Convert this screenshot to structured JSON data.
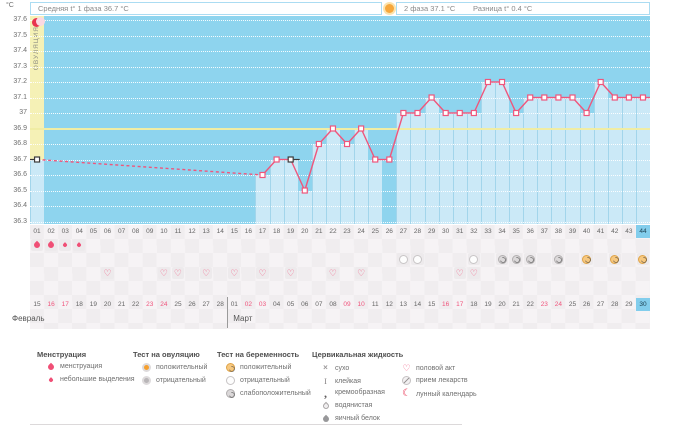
{
  "header": {
    "unit": "°C",
    "avg_phase1_label": "Средняя t° 1 фаза 36.7 °C",
    "phase2_label": "2 фаза 37.1 °C",
    "diff_label": "Разница t° 0.4 °C",
    "ovulation_band_label": "ОВУЛЯЦИЯ"
  },
  "colors": {
    "chart_bg": "#8ed4ee",
    "area_fill": "#cbe9f7",
    "ovulation_band": "#f5f1b6",
    "highlight_column": "#f6a9c1",
    "phase2_highlight_cell": "#f4b9ca",
    "line": "#ef567c",
    "open_marker": "#3a3a3a",
    "coverline": "#f0eda4",
    "today_bg": "#82cdec",
    "weekend_text": "#f0557d",
    "accent_pink": "#f1557e"
  },
  "chart_data": {
    "type": "line",
    "ylabel": "°C",
    "ylim": [
      36.3,
      37.6
    ],
    "ytick_labels": [
      "37.6",
      "37.5",
      "37.4",
      "37.3",
      "37.2",
      "37.1",
      "37",
      "36.9",
      "36.8",
      "36.7",
      "36.6",
      "36.5",
      "36.4",
      "36.3"
    ],
    "x_day_labels": [
      "01",
      "02",
      "03",
      "04",
      "05",
      "06",
      "07",
      "08",
      "09",
      "10",
      "11",
      "12",
      "13",
      "14",
      "15",
      "16",
      "17",
      "18",
      "19",
      "20",
      "21",
      "22",
      "23",
      "24",
      "25",
      "26",
      "27",
      "28",
      "29",
      "30",
      "31",
      "32",
      "33",
      "34",
      "35",
      "36",
      "37",
      "38",
      "39",
      "40",
      "41",
      "42",
      "43",
      "44"
    ],
    "coverline_temp": 36.9,
    "ovulation_day": 26,
    "highlighted_day": 41,
    "today_day": 44,
    "lunar_icon_day": 27,
    "phase2_day_labels": [
      "01",
      "02",
      "03",
      "04",
      "05",
      "06",
      "07",
      "08",
      "09",
      "10",
      "11",
      "12",
      "13",
      "14",
      "15",
      "16",
      "17",
      "18"
    ],
    "phase2_highlight_label": "15",
    "points": [
      {
        "day": 1,
        "temp": 36.7,
        "marker": "open"
      },
      {
        "day": 17,
        "temp": 36.6
      },
      {
        "day": 18,
        "temp": 36.7
      },
      {
        "day": 19,
        "temp": 36.7,
        "marker": "open"
      },
      {
        "day": 20,
        "temp": 36.5
      },
      {
        "day": 21,
        "temp": 36.8
      },
      {
        "day": 22,
        "temp": 36.9
      },
      {
        "day": 23,
        "temp": 36.8
      },
      {
        "day": 24,
        "temp": 36.9
      },
      {
        "day": 25,
        "temp": 36.7
      },
      {
        "day": 26,
        "temp": 36.7
      },
      {
        "day": 27,
        "temp": 37.0
      },
      {
        "day": 28,
        "temp": 37.0
      },
      {
        "day": 29,
        "temp": 37.1
      },
      {
        "day": 30,
        "temp": 37.0
      },
      {
        "day": 31,
        "temp": 37.0
      },
      {
        "day": 32,
        "temp": 37.0
      },
      {
        "day": 33,
        "temp": 37.2
      },
      {
        "day": 34,
        "temp": 37.2
      },
      {
        "day": 35,
        "temp": 37.0
      },
      {
        "day": 36,
        "temp": 37.1
      },
      {
        "day": 37,
        "temp": 37.1
      },
      {
        "day": 38,
        "temp": 37.1
      },
      {
        "day": 39,
        "temp": 37.1
      },
      {
        "day": 40,
        "temp": 37.0
      },
      {
        "day": 41,
        "temp": 37.2
      },
      {
        "day": 42,
        "temp": 37.1
      },
      {
        "day": 43,
        "temp": 37.1
      },
      {
        "day": 44,
        "temp": 37.1
      }
    ]
  },
  "marks": {
    "menstruation": [
      {
        "day": 1,
        "size": "large"
      },
      {
        "day": 2,
        "size": "large"
      },
      {
        "day": 3,
        "size": "small"
      },
      {
        "day": 4,
        "size": "small"
      }
    ],
    "pregnancy_tests": [
      {
        "day": 27,
        "result": "negative"
      },
      {
        "day": 28,
        "result": "negative"
      },
      {
        "day": 32,
        "result": "negative"
      },
      {
        "day": 34,
        "result": "weak_positive"
      },
      {
        "day": 35,
        "result": "weak_positive"
      },
      {
        "day": 36,
        "result": "weak_positive"
      },
      {
        "day": 38,
        "result": "weak_positive"
      },
      {
        "day": 40,
        "result": "positive"
      },
      {
        "day": 42,
        "result": "positive"
      },
      {
        "day": 44,
        "result": "positive"
      }
    ],
    "intercourse_days": [
      6,
      10,
      11,
      13,
      15,
      17,
      19,
      22,
      24,
      31,
      32
    ]
  },
  "calendar": {
    "months": [
      {
        "name": "Февраль",
        "days": [
          {
            "d": "15"
          },
          {
            "d": "16",
            "red": true
          },
          {
            "d": "17",
            "red": true
          },
          {
            "d": "18"
          },
          {
            "d": "19"
          },
          {
            "d": "20"
          },
          {
            "d": "21"
          },
          {
            "d": "22"
          },
          {
            "d": "23",
            "red": true
          },
          {
            "d": "24",
            "red": true
          },
          {
            "d": "25"
          },
          {
            "d": "26"
          },
          {
            "d": "27"
          },
          {
            "d": "28"
          }
        ]
      },
      {
        "name": "Март",
        "days": [
          {
            "d": "01"
          },
          {
            "d": "02",
            "red": true
          },
          {
            "d": "03",
            "red": true
          },
          {
            "d": "04"
          },
          {
            "d": "05"
          },
          {
            "d": "06"
          },
          {
            "d": "07"
          },
          {
            "d": "08"
          },
          {
            "d": "09",
            "red": true
          },
          {
            "d": "10",
            "red": true
          },
          {
            "d": "11"
          },
          {
            "d": "12"
          },
          {
            "d": "13"
          },
          {
            "d": "14"
          },
          {
            "d": "15"
          },
          {
            "d": "16",
            "red": true
          },
          {
            "d": "17",
            "red": true
          },
          {
            "d": "18"
          },
          {
            "d": "19"
          },
          {
            "d": "20"
          },
          {
            "d": "21"
          },
          {
            "d": "22"
          },
          {
            "d": "23",
            "red": true
          },
          {
            "d": "24",
            "red": true
          },
          {
            "d": "25"
          },
          {
            "d": "26"
          },
          {
            "d": "27"
          },
          {
            "d": "28"
          },
          {
            "d": "29"
          },
          {
            "d": "30",
            "today": true
          }
        ]
      }
    ]
  },
  "legend": {
    "columns": [
      {
        "title": "Менструация",
        "items": [
          {
            "icon": "drop-large",
            "label": "менструация"
          },
          {
            "icon": "drop-small",
            "label": "небольшие выделения"
          }
        ]
      },
      {
        "title": "Тест на овуляцию",
        "items": [
          {
            "icon": "ovu-pos",
            "label": "положительный"
          },
          {
            "icon": "ovu-neg",
            "label": "отрицательный"
          }
        ]
      },
      {
        "title": "Тест на беременность",
        "items": [
          {
            "icon": "preg-pos",
            "label": "положительный"
          },
          {
            "icon": "preg-neg",
            "label": "отрицательный"
          },
          {
            "icon": "preg-weak",
            "label": "слабоположительный"
          }
        ]
      },
      {
        "title": "Цервикальная жидкость",
        "items": [
          {
            "icon": "cf-dry",
            "label": "сухо"
          },
          {
            "icon": "cf-sticky",
            "label": "клейкая"
          },
          {
            "icon": "cf-creamy",
            "label": "кремообразная"
          },
          {
            "icon": "cf-watery",
            "label": "водянистая"
          },
          {
            "icon": "cf-eggwhite",
            "label": "яичный белок"
          }
        ]
      },
      {
        "title": "",
        "items": [
          {
            "icon": "heart",
            "label": "половой акт"
          },
          {
            "icon": "meds",
            "label": "прием лекарств"
          },
          {
            "icon": "moon",
            "label": "лунный календарь"
          }
        ]
      }
    ]
  }
}
